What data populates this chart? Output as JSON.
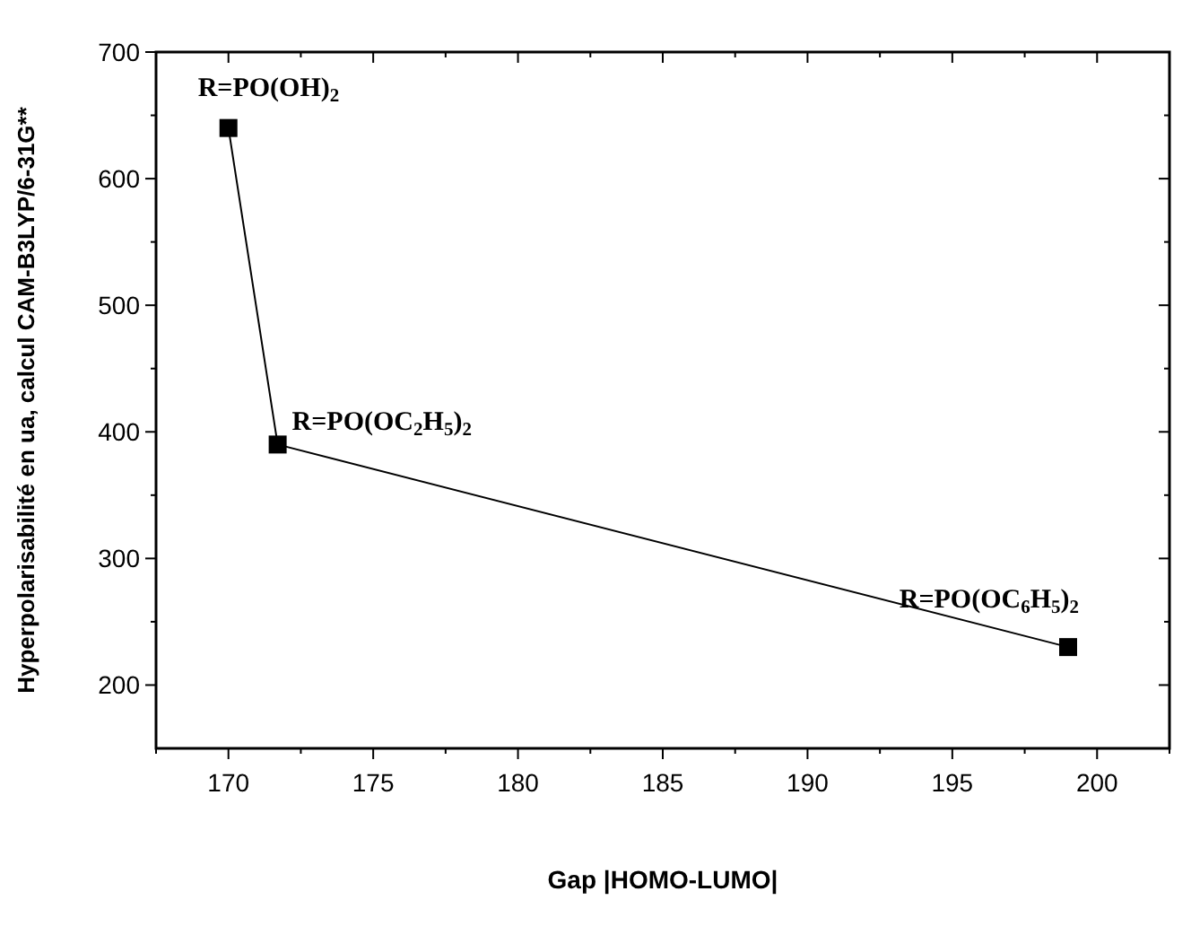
{
  "chart_data": {
    "type": "line",
    "xlabel": "Gap |HOMO-LUMO|",
    "ylabel": "Hyperpolarisabilité en ua, calcul CAM-B3LYP/6-31G**",
    "x": [
      170,
      171.7,
      199
    ],
    "series": [
      {
        "color": "#000000",
        "values": [
          640,
          390,
          230
        ]
      }
    ],
    "marker": "square",
    "line_style": "solid",
    "xlim": [
      167.5,
      202.5
    ],
    "ylim": [
      150,
      700
    ],
    "xticks": [
      {
        "value": 167.5,
        "label": null
      },
      170,
      {
        "value": 172.5,
        "label": null
      },
      175,
      {
        "value": 177.5,
        "label": null
      },
      180,
      {
        "value": 182.5,
        "label": null
      },
      185,
      {
        "value": 187.5,
        "label": null
      },
      190,
      {
        "value": 192.5,
        "label": null
      },
      195,
      {
        "value": 197.5,
        "label": null
      },
      200,
      {
        "value": 202.5,
        "label": null
      }
    ],
    "yticks": [
      200,
      {
        "value": 250,
        "label": null
      },
      300,
      {
        "value": 350,
        "label": null
      },
      400,
      {
        "value": 450,
        "label": null
      },
      500,
      {
        "value": 550,
        "label": null
      },
      600,
      {
        "value": 650,
        "label": null
      },
      700
    ],
    "annotations": [
      {
        "text": "R=PO(OH)$_{2}$",
        "x": 170,
        "y": 640
      },
      {
        "text": "R=PO(OC$_{2}$H$_{5}$)$_{2}$",
        "x": 171.7,
        "y": 390
      },
      {
        "text": "R=PO(OC$_{6}$H$_{5}$)$_{2}$",
        "x": 199,
        "y": 230
      }
    ]
  }
}
